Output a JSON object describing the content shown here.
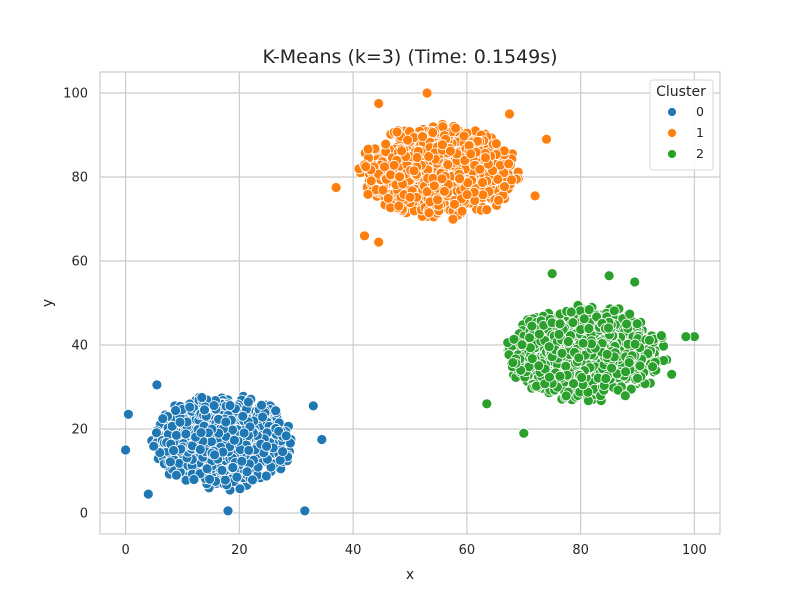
{
  "chart_data": {
    "type": "scatter",
    "title": "K-Means (k=3) (Time: 0.1549s)",
    "xlabel": "x",
    "ylabel": "y",
    "xlim": [
      -4.5,
      104.5
    ],
    "ylim": [
      -5,
      105
    ],
    "xticks": [
      "0",
      "20",
      "40",
      "60",
      "80",
      "100"
    ],
    "xtick_values": [
      0,
      20,
      40,
      60,
      80,
      100
    ],
    "yticks": [
      "0",
      "20",
      "40",
      "60",
      "80",
      "100"
    ],
    "ytick_values": [
      0,
      20,
      40,
      60,
      80,
      100
    ],
    "grid": true,
    "legend": {
      "title": "Cluster",
      "placement": "top-right"
    },
    "series": [
      {
        "name": "0",
        "color": "#1f77b4",
        "center": [
          17,
          17
        ],
        "spread": [
          7,
          6.5
        ],
        "points": [
          [
            31.5,
            0.5
          ],
          [
            0,
            15
          ],
          [
            0.5,
            23.5
          ],
          [
            34.5,
            17.5
          ],
          [
            18,
            0.5
          ],
          [
            5.5,
            30.5
          ],
          [
            33,
            25.5
          ],
          [
            4,
            4.5
          ]
        ]
      },
      {
        "name": "1",
        "color": "#ff7f0e",
        "center": [
          55,
          81
        ],
        "spread": [
          8,
          6.5
        ],
        "points": [
          [
            53,
            100
          ],
          [
            44.5,
            97.5
          ],
          [
            37,
            77.5
          ],
          [
            42,
            66
          ],
          [
            44.5,
            64.5
          ],
          [
            67.5,
            95
          ],
          [
            74,
            89
          ],
          [
            72,
            75.5
          ]
        ]
      },
      {
        "name": "2",
        "color": "#2ca02c",
        "center": [
          81,
          38
        ],
        "spread": [
          8,
          6.5
        ],
        "points": [
          [
            100,
            42
          ],
          [
            98.5,
            42
          ],
          [
            75,
            57
          ],
          [
            85,
            56.5
          ],
          [
            70,
            19
          ],
          [
            63.5,
            26
          ],
          [
            96,
            33
          ],
          [
            89.5,
            55
          ]
        ]
      }
    ]
  }
}
